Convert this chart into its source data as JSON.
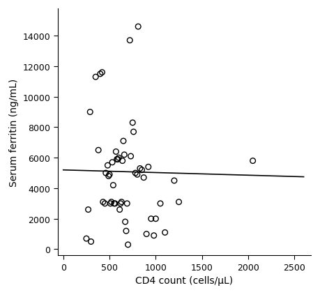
{
  "x": [
    250,
    270,
    290,
    300,
    350,
    380,
    400,
    420,
    430,
    450,
    460,
    480,
    490,
    500,
    510,
    520,
    530,
    540,
    550,
    560,
    570,
    580,
    590,
    600,
    610,
    620,
    630,
    640,
    650,
    660,
    670,
    680,
    690,
    700,
    720,
    730,
    750,
    760,
    780,
    800,
    810,
    830,
    850,
    870,
    900,
    920,
    950,
    980,
    1000,
    1050,
    1100,
    1200,
    1250,
    2050
  ],
  "y": [
    700,
    2600,
    9000,
    500,
    11300,
    6500,
    11500,
    11600,
    3100,
    3000,
    5000,
    5500,
    4800,
    4900,
    3000,
    3100,
    5700,
    4200,
    3000,
    3000,
    6400,
    5900,
    5900,
    6000,
    2600,
    3000,
    3100,
    5800,
    7100,
    6200,
    1800,
    1200,
    3000,
    300,
    13700,
    6100,
    8300,
    7700,
    5000,
    4900,
    14600,
    5300,
    5200,
    4700,
    1000,
    5400,
    2000,
    900,
    2000,
    3000,
    1100,
    4500,
    3100,
    5800
  ],
  "trend_x": [
    0,
    2600
  ],
  "trend_y": [
    5200,
    4750
  ],
  "xlabel": "CD4 count (cells/μL)",
  "ylabel": "Serum ferritin (ng/mL)",
  "xlim": [
    -60,
    2680
  ],
  "ylim": [
    -400,
    15800
  ],
  "xticks": [
    0,
    500,
    1000,
    1500,
    2000,
    2500
  ],
  "yticks": [
    0,
    2000,
    4000,
    6000,
    8000,
    10000,
    12000,
    14000
  ],
  "marker_size": 5.5,
  "marker_color": "none",
  "marker_edge_color": "#000000",
  "marker_edge_width": 1.0,
  "line_color": "#000000",
  "line_width": 1.2,
  "bg_color": "#ffffff",
  "font_size_labels": 10,
  "font_size_ticks": 9
}
